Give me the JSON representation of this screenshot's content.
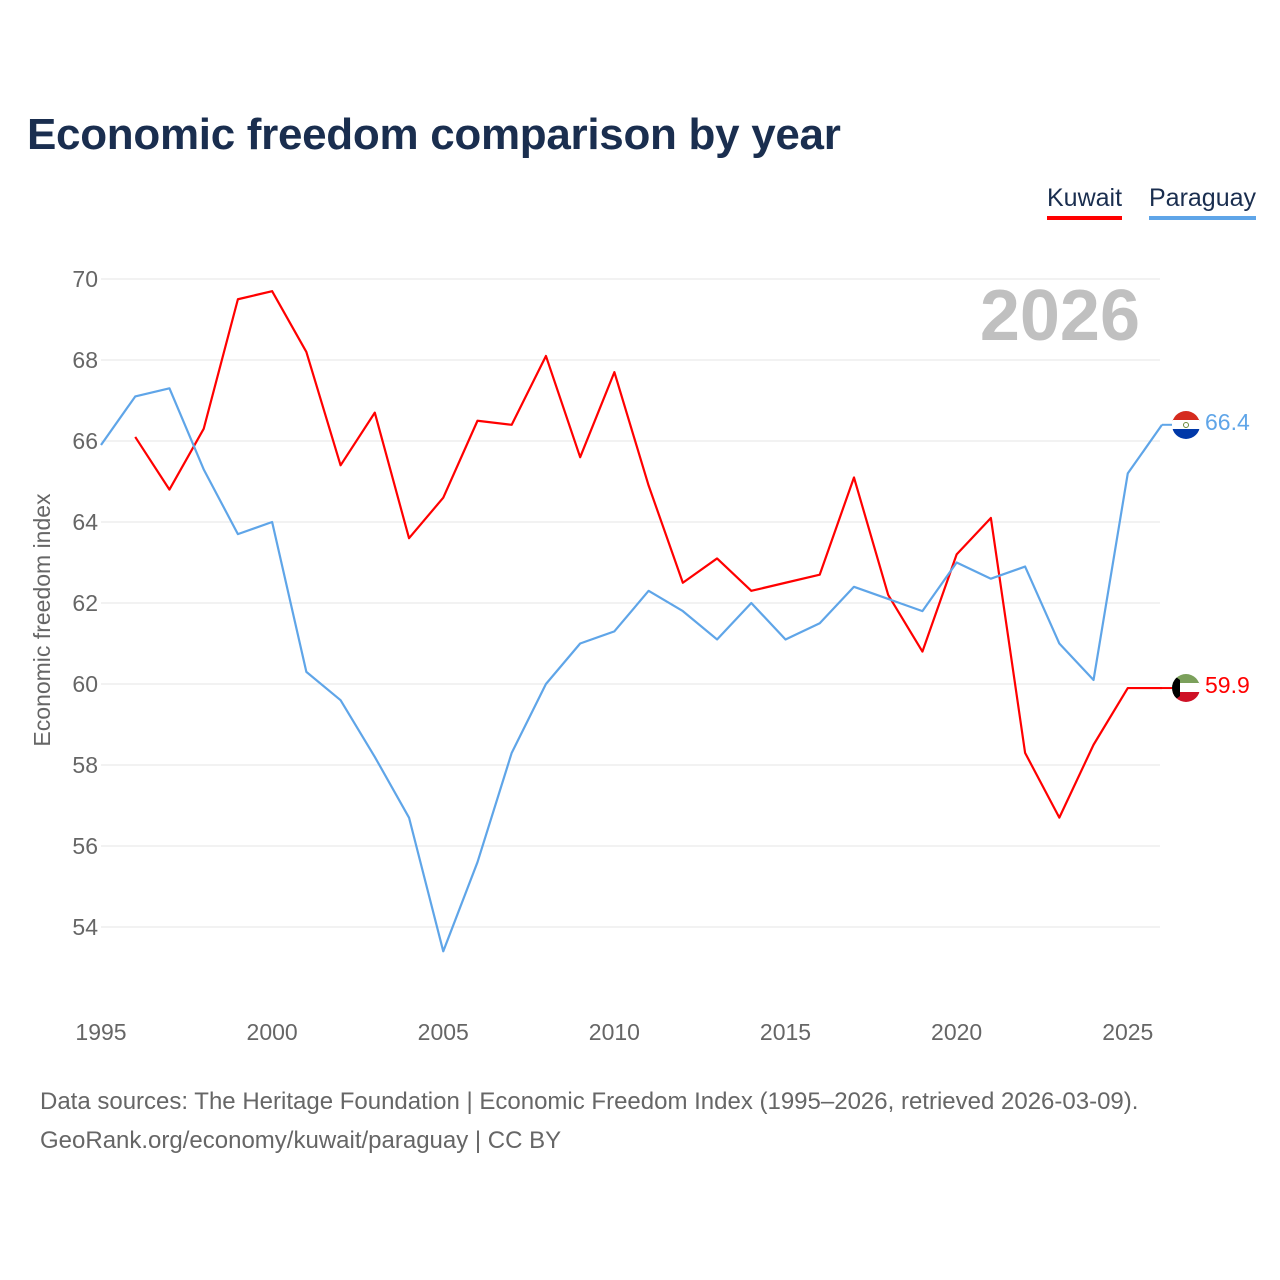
{
  "chart_data": {
    "type": "line",
    "title": "Economic freedom comparison by year",
    "xlabel": "",
    "ylabel": "Economic freedom index",
    "xlim": [
      1995,
      2026
    ],
    "ylim": [
      52,
      70
    ],
    "x_ticks": [
      1995,
      2000,
      2005,
      2010,
      2015,
      2020,
      2025
    ],
    "y_ticks": [
      54,
      56,
      58,
      60,
      62,
      64,
      66,
      68,
      70
    ],
    "grid": true,
    "legend_placement": "top-right",
    "year_watermark": "2026",
    "series": [
      {
        "name": "Kuwait",
        "color": "#ff0000",
        "end_label": "59.9",
        "x": [
          1996,
          1997,
          1998,
          1999,
          2000,
          2001,
          2002,
          2003,
          2004,
          2005,
          2006,
          2007,
          2008,
          2009,
          2010,
          2011,
          2012,
          2013,
          2014,
          2015,
          2016,
          2017,
          2018,
          2019,
          2020,
          2021,
          2022,
          2023,
          2024,
          2025,
          2026
        ],
        "values": [
          66.1,
          64.8,
          66.3,
          69.5,
          69.7,
          68.2,
          65.4,
          66.7,
          63.6,
          64.6,
          66.5,
          66.4,
          68.1,
          65.6,
          67.7,
          64.9,
          62.5,
          63.1,
          62.3,
          62.5,
          62.7,
          65.1,
          62.2,
          60.8,
          63.2,
          64.1,
          58.3,
          56.7,
          58.5,
          59.9,
          59.9
        ]
      },
      {
        "name": "Paraguay",
        "color": "#5fa5e8",
        "end_label": "66.4",
        "x": [
          1995,
          1996,
          1997,
          1998,
          1999,
          2000,
          2001,
          2002,
          2003,
          2004,
          2005,
          2006,
          2007,
          2008,
          2009,
          2010,
          2011,
          2012,
          2013,
          2014,
          2015,
          2016,
          2017,
          2018,
          2019,
          2020,
          2021,
          2022,
          2023,
          2024,
          2025,
          2026
        ],
        "values": [
          65.9,
          67.1,
          67.3,
          65.3,
          63.7,
          64.0,
          60.3,
          59.6,
          58.2,
          56.7,
          53.4,
          55.6,
          58.3,
          60.0,
          61.0,
          61.3,
          62.3,
          61.8,
          61.1,
          62.0,
          61.1,
          61.5,
          62.4,
          62.1,
          61.8,
          63.0,
          62.6,
          62.9,
          61.0,
          60.1,
          65.2,
          66.4
        ]
      }
    ]
  },
  "footer": {
    "line1": "Data sources: The Heritage Foundation | Economic Freedom Index (1995–2026, retrieved 2026-03-09).",
    "line2": "GeoRank.org/economy/kuwait/paraguay | CC BY"
  }
}
